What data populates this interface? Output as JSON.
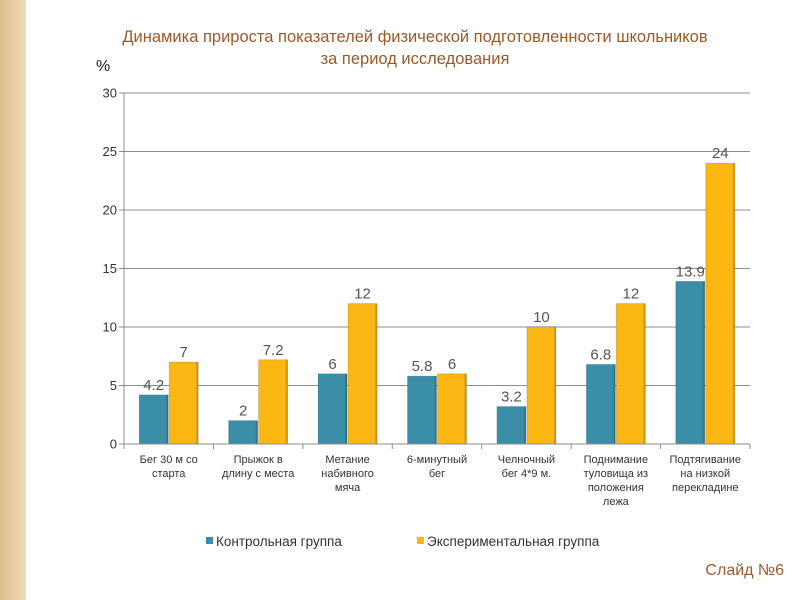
{
  "slide": {
    "title_line1": "Динамика прироста показателей физической подготовленности школьников",
    "title_line2": "за период исследования",
    "slide_number": "Слайд №6"
  },
  "colors": {
    "control": "#3a8ea8",
    "experimental": "#fcb712",
    "accent_text": "#9a5a2a"
  },
  "chart_data": {
    "type": "bar",
    "title": "Динамика прироста показателей физической подготовленности школьников за период исследования",
    "ylabel": "%",
    "xlabel": "",
    "ylim": [
      0,
      30
    ],
    "yticks": [
      0,
      5,
      10,
      15,
      20,
      25,
      30
    ],
    "grid": true,
    "legend_position": "bottom",
    "categories": [
      [
        "Бег 30 м со",
        "старта"
      ],
      [
        "Прыжок в",
        "длину с места"
      ],
      [
        "Метание",
        "набивного",
        "мяча"
      ],
      [
        "6-минутный",
        "бег"
      ],
      [
        "Челночный",
        "бег 4*9 м."
      ],
      [
        "Поднимание",
        "туловища из",
        "положения",
        "лежа"
      ],
      [
        "Подтягивание",
        "на низкой",
        "перекладине"
      ]
    ],
    "series": [
      {
        "name": "Контрольная группа",
        "color": "#3a8ea8",
        "values": [
          4.2,
          2,
          6,
          5.8,
          3.2,
          6.8,
          13.9
        ]
      },
      {
        "name": "Экспериментальная группа",
        "color": "#fcb712",
        "values": [
          7,
          7.2,
          12,
          6,
          10,
          12,
          24
        ]
      }
    ]
  }
}
